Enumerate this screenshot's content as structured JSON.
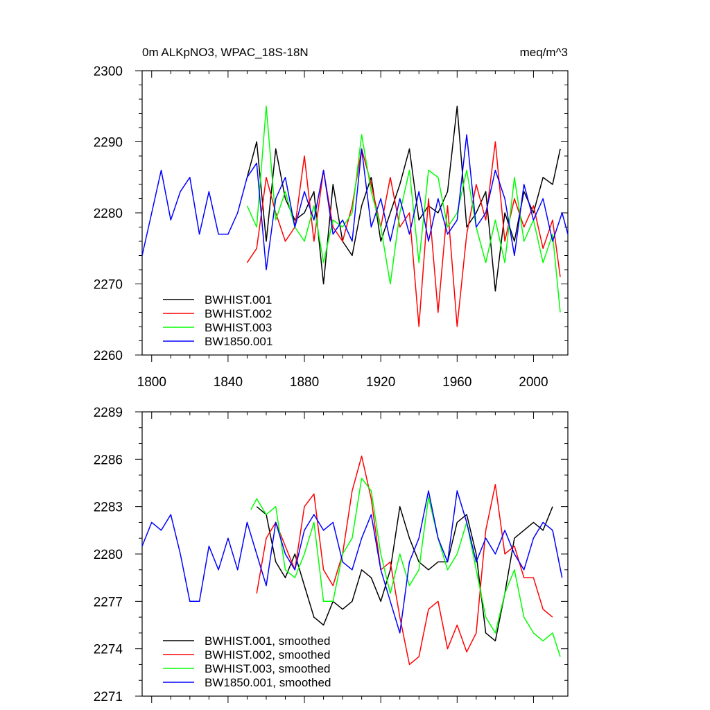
{
  "chart_data": [
    {
      "type": "line",
      "title": "0m ALKpNO3, WPAC_18S-18N",
      "units_label": "meq/m^3",
      "xlim": [
        1795,
        2018
      ],
      "ylim": [
        2260,
        2300
      ],
      "x_tick_labels": [
        "1800",
        "1840",
        "1880",
        "1920",
        "1960",
        "2000"
      ],
      "y_tick_labels": [
        "2260",
        "2270",
        "2280",
        "2290",
        "2300"
      ],
      "legend_position": "bottom-left",
      "series": [
        {
          "name": "BWHIST.001",
          "color": "#000000",
          "x": [
            1850,
            1855,
            1860,
            1865,
            1870,
            1875,
            1880,
            1885,
            1890,
            1895,
            1900,
            1905,
            1910,
            1915,
            1920,
            1925,
            1930,
            1935,
            1940,
            1945,
            1950,
            1955,
            1960,
            1965,
            1970,
            1975,
            1980,
            1985,
            1990,
            1995,
            2000,
            2005,
            2010,
            2014
          ],
          "y": [
            2285,
            2290,
            2276,
            2289,
            2282,
            2279,
            2280,
            2283,
            2270,
            2284,
            2276,
            2274,
            2281,
            2285,
            2276,
            2280,
            2284,
            2289,
            2279,
            2281,
            2280,
            2283,
            2295,
            2278,
            2280,
            2283,
            2269,
            2280,
            2276,
            2283,
            2280,
            2285,
            2284,
            2289
          ]
        },
        {
          "name": "BWHIST.002",
          "color": "#ff0000",
          "x": [
            1850,
            1855,
            1860,
            1865,
            1870,
            1875,
            1880,
            1885,
            1890,
            1895,
            1900,
            1905,
            1910,
            1915,
            1920,
            1925,
            1930,
            1935,
            1940,
            1945,
            1950,
            1955,
            1960,
            1965,
            1970,
            1975,
            1980,
            1985,
            1990,
            1995,
            2000,
            2005,
            2010,
            2014
          ],
          "y": [
            2273,
            2275,
            2285,
            2280,
            2276,
            2278,
            2288,
            2276,
            2286,
            2278,
            2276,
            2281,
            2289,
            2284,
            2278,
            2285,
            2278,
            2280,
            2264,
            2282,
            2266,
            2281,
            2264,
            2277,
            2284,
            2279,
            2290,
            2276,
            2282,
            2278,
            2281,
            2275,
            2279,
            2271
          ]
        },
        {
          "name": "BWHIST.003",
          "color": "#00ff00",
          "x": [
            1850,
            1855,
            1860,
            1865,
            1870,
            1875,
            1880,
            1885,
            1890,
            1895,
            1900,
            1905,
            1910,
            1915,
            1920,
            1925,
            1930,
            1935,
            1940,
            1945,
            1950,
            1955,
            1960,
            1965,
            1970,
            1975,
            1980,
            1985,
            1990,
            1995,
            2000,
            2005,
            2010,
            2014
          ],
          "y": [
            2281,
            2278,
            2295,
            2279,
            2283,
            2278,
            2276,
            2281,
            2273,
            2279,
            2278,
            2280,
            2291,
            2283,
            2278,
            2270,
            2280,
            2286,
            2273,
            2286,
            2285,
            2278,
            2280,
            2286,
            2278,
            2273,
            2279,
            2273,
            2285,
            2276,
            2279,
            2273,
            2277,
            2266
          ]
        },
        {
          "name": "BW1850.001",
          "color": "#0000ff",
          "x": [
            1795,
            1800,
            1805,
            1810,
            1815,
            1820,
            1825,
            1830,
            1835,
            1840,
            1845,
            1850,
            1855,
            1860,
            1865,
            1870,
            1875,
            1880,
            1885,
            1890,
            1895,
            1900,
            1905,
            1910,
            1915,
            1920,
            1925,
            1930,
            1935,
            1940,
            1945,
            1950,
            1955,
            1960,
            1965,
            1970,
            1975,
            1980,
            1985,
            1990,
            1995,
            2000,
            2005,
            2010,
            2015,
            2018
          ],
          "y": [
            2274,
            2280,
            2286,
            2279,
            2283,
            2285,
            2277,
            2283,
            2277,
            2277,
            2280,
            2285,
            2287,
            2272,
            2282,
            2285,
            2278,
            2283,
            2279,
            2286,
            2277,
            2279,
            2276,
            2289,
            2278,
            2282,
            2276,
            2282,
            2277,
            2283,
            2276,
            2282,
            2277,
            2279,
            2291,
            2278,
            2280,
            2286,
            2282,
            2274,
            2284,
            2279,
            2282,
            2276,
            2280,
            2277
          ]
        }
      ]
    },
    {
      "type": "line",
      "xlim": [
        1795,
        2018
      ],
      "ylim": [
        2271,
        2289
      ],
      "y_tick_labels": [
        "2271",
        "2274",
        "2277",
        "2280",
        "2283",
        "2286",
        "2289"
      ],
      "legend_position": "bottom-left",
      "series": [
        {
          "name": "BWHIST.001, smoothed",
          "color": "#000000",
          "x": [
            1855,
            1860,
            1865,
            1870,
            1875,
            1880,
            1885,
            1890,
            1895,
            1900,
            1905,
            1910,
            1915,
            1920,
            1925,
            1930,
            1935,
            1940,
            1945,
            1950,
            1955,
            1960,
            1965,
            1970,
            1975,
            1980,
            1985,
            1990,
            1995,
            2000,
            2005,
            2010
          ],
          "y": [
            2283,
            2282.5,
            2279.5,
            2278.5,
            2280,
            2278,
            2276,
            2275.5,
            2277,
            2276.5,
            2277,
            2279,
            2278.5,
            2277,
            2279,
            2283,
            2281,
            2279.5,
            2279,
            2279.5,
            2279.5,
            2282,
            2282.5,
            2280,
            2275,
            2274.5,
            2277.5,
            2281,
            2281.5,
            2282,
            2281.5,
            2283
          ]
        },
        {
          "name": "BWHIST.002, smoothed",
          "color": "#ff0000",
          "x": [
            1855,
            1860,
            1865,
            1870,
            1875,
            1880,
            1885,
            1890,
            1895,
            1900,
            1905,
            1910,
            1915,
            1920,
            1925,
            1930,
            1935,
            1940,
            1945,
            1950,
            1955,
            1960,
            1965,
            1970,
            1975,
            1980,
            1985,
            1990,
            1995,
            2000,
            2005,
            2010
          ],
          "y": [
            2277.5,
            2281,
            2282,
            2280.5,
            2279,
            2283,
            2283.8,
            2279,
            2278,
            2280,
            2284,
            2286.2,
            2283.5,
            2279,
            2279.5,
            2276,
            2273,
            2273.5,
            2276.5,
            2277,
            2274,
            2275.5,
            2273.8,
            2275,
            2281.5,
            2284.4,
            2280,
            2280.5,
            2278.5,
            2278.5,
            2276.5,
            2276
          ]
        },
        {
          "name": "BWHIST.003, smoothed",
          "color": "#00ff00",
          "x": [
            1852,
            1855,
            1860,
            1865,
            1870,
            1875,
            1880,
            1885,
            1890,
            1895,
            1900,
            1905,
            1910,
            1915,
            1920,
            1925,
            1930,
            1935,
            1940,
            1945,
            1950,
            1955,
            1960,
            1965,
            1970,
            1975,
            1980,
            1985,
            1990,
            1995,
            2000,
            2005,
            2010,
            2014
          ],
          "y": [
            2282.8,
            2283.5,
            2282.5,
            2283,
            2279,
            2278.5,
            2280,
            2282,
            2277,
            2277,
            2280,
            2281,
            2284.8,
            2284,
            2280,
            2277.5,
            2280,
            2278,
            2279,
            2283.6,
            2281,
            2279,
            2280,
            2282,
            2279,
            2276,
            2275,
            2277.5,
            2279,
            2276,
            2275,
            2274.5,
            2275,
            2273.5
          ]
        },
        {
          "name": "BW1850.001, smoothed",
          "color": "#0000ff",
          "x": [
            1795,
            1800,
            1805,
            1810,
            1815,
            1820,
            1825,
            1830,
            1835,
            1840,
            1845,
            1850,
            1855,
            1860,
            1865,
            1870,
            1875,
            1880,
            1885,
            1890,
            1895,
            1900,
            1905,
            1910,
            1915,
            1920,
            1925,
            1930,
            1935,
            1940,
            1945,
            1950,
            1955,
            1960,
            1965,
            1970,
            1975,
            1980,
            1985,
            1990,
            1995,
            2000,
            2005,
            2010,
            2015
          ],
          "y": [
            2280.5,
            2282,
            2281.5,
            2282.5,
            2280,
            2277,
            2277,
            2280.5,
            2279,
            2281,
            2279,
            2282,
            2280,
            2278,
            2282,
            2280,
            2279,
            2281.5,
            2282.5,
            2281.5,
            2282,
            2279.5,
            2279,
            2281,
            2282.5,
            2279,
            2277,
            2275,
            2279.5,
            2281,
            2284,
            2281,
            2279.5,
            2284,
            2282,
            2279.5,
            2281,
            2280,
            2281.5,
            2280,
            2279,
            2281,
            2282,
            2281.5,
            2278.5
          ]
        }
      ]
    }
  ]
}
